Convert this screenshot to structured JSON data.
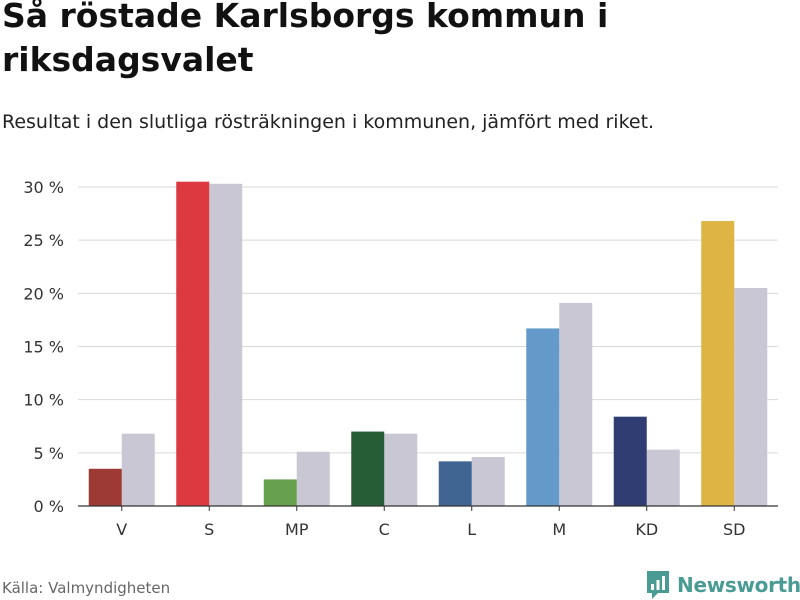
{
  "title": "Så röstade Karlsborgs kommun i riksdagsvalet",
  "subtitle": "Resultat i den slutliga rösträkningen i kommunen, jämfört med riket.",
  "source": "Källa: Valmyndigheten",
  "brand": {
    "name": "Newsworthy",
    "icon": "newsworthy-logo-icon",
    "color": "#4b9b95"
  },
  "chart_data": {
    "type": "bar",
    "title": "Så röstade Karlsborgs kommun i riksdagsvalet",
    "xlabel": "",
    "ylabel": "",
    "ylim": [
      0,
      30
    ],
    "yticks": [
      0,
      5,
      10,
      15,
      20,
      25,
      30
    ],
    "ytick_labels": [
      "0 %",
      "5 %",
      "10 %",
      "15 %",
      "20 %",
      "25 %",
      "30 %"
    ],
    "grid": true,
    "legend": "none",
    "categories": [
      "V",
      "S",
      "MP",
      "C",
      "L",
      "M",
      "KD",
      "SD"
    ],
    "series": [
      {
        "name": "Karlsborgs kommun",
        "values": [
          3.5,
          30.5,
          2.5,
          7.0,
          4.2,
          16.7,
          8.4,
          26.8
        ],
        "colors": [
          "#9e3a36",
          "#dc3a40",
          "#67a14e",
          "#275d36",
          "#416592",
          "#649ac9",
          "#303d72",
          "#deb444"
        ]
      },
      {
        "name": "Riket",
        "values": [
          6.8,
          30.3,
          5.1,
          6.8,
          4.6,
          19.1,
          5.3,
          20.5
        ],
        "color": "#c8c7d3"
      }
    ]
  }
}
